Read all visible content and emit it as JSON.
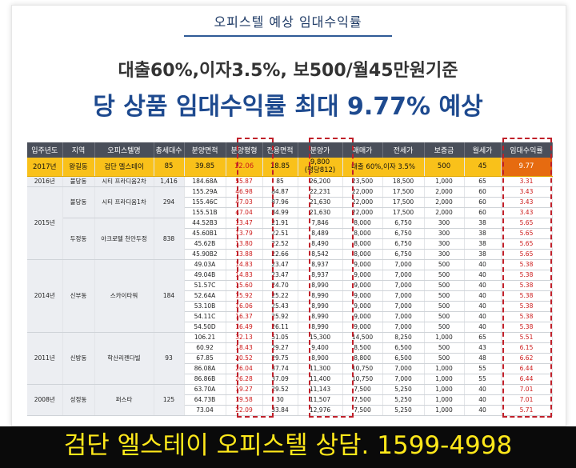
{
  "header": {
    "top_title": "오피스텔 예상 임대수익률",
    "subtitle": "대출60%,이자3.5%, 보500/월45만원기준",
    "headline": "당 상품 임대수익률 최대 9.77% 예상"
  },
  "table": {
    "columns": [
      "입주년도",
      "지역",
      "오피스텔명",
      "총세대수",
      "분양면적",
      "분양평형",
      "전용면적",
      "분양가",
      "매매가",
      "전세가",
      "보증금",
      "월세가",
      "임대수익률"
    ],
    "highlight": {
      "year": "2017년",
      "region": "왕길동",
      "name": "검단 엘스테이",
      "units": "85",
      "area": "39.85",
      "pyeong": "12.06",
      "exclusive": "18.85",
      "price": "9,800",
      "price_note": "(평당812)",
      "loan_note": "대출 60%,이자 3.5%",
      "deposit": "500",
      "rent": "45",
      "rate": "9.77"
    },
    "groups": [
      {
        "year": "2016년",
        "subgroups": [
          {
            "region": "불당동",
            "name": "시티 프라디움2차",
            "units": "1,416",
            "rows": [
              [
                "184.68A",
                "55.87",
                "85",
                "26,200",
                "23,500",
                "18,500",
                "1,000",
                "65",
                "3.31"
              ]
            ]
          }
        ]
      },
      {
        "year": "2015년",
        "subgroups": [
          {
            "region": "불당동",
            "name": "시티 프라디움1차",
            "units": "294",
            "rows": [
              [
                "155.29A",
                "46.98",
                "84.87",
                "22,231",
                "22,000",
                "17,500",
                "2,000",
                "60",
                "3.43"
              ],
              [
                "155.46C",
                "47.03",
                "87.96",
                "21,630",
                "22,000",
                "17,500",
                "2,000",
                "60",
                "3.43"
              ],
              [
                "155.51B",
                "47.04",
                "84.99",
                "21,630",
                "22,000",
                "17,500",
                "2,000",
                "60",
                "3.43"
              ]
            ]
          },
          {
            "region": "두정동",
            "name": "아크로텔 천안두정",
            "units": "838",
            "rows": [
              [
                "44.52B3",
                "13.47",
                "21.91",
                "7,846",
                "8,000",
                "6,750",
                "300",
                "38",
                "5.65"
              ],
              [
                "45.60B1",
                "13.79",
                "22.51",
                "8,489",
                "8,000",
                "6,750",
                "300",
                "38",
                "5.65"
              ],
              [
                "45.62B",
                "13.80",
                "22.52",
                "8,490",
                "8,000",
                "6,750",
                "300",
                "38",
                "5.65"
              ],
              [
                "45.90B2",
                "13.88",
                "22.66",
                "8,542",
                "8,000",
                "6,750",
                "300",
                "38",
                "5.65"
              ]
            ]
          }
        ]
      },
      {
        "year": "2014년",
        "subgroups": [
          {
            "region": "신부동",
            "name": "스카이타워",
            "units": "184",
            "rows": [
              [
                "49.03A",
                "14.83",
                "23.47",
                "8,937",
                "9,000",
                "7,000",
                "500",
                "40",
                "5.38"
              ],
              [
                "49.04B",
                "14.83",
                "23.47",
                "8,937",
                "9,000",
                "7,000",
                "500",
                "40",
                "5.38"
              ],
              [
                "51.57C",
                "15.60",
                "24.70",
                "8,990",
                "9,000",
                "7,000",
                "500",
                "40",
                "5.38"
              ],
              [
                "52.64A",
                "15.92",
                "25.22",
                "8,990",
                "9,000",
                "7,000",
                "500",
                "40",
                "5.38"
              ],
              [
                "53.10B",
                "16.06",
                "25.43",
                "8,990",
                "9,000",
                "7,000",
                "500",
                "40",
                "5.38"
              ],
              [
                "54.11C",
                "16.37",
                "25.92",
                "8,990",
                "9,000",
                "7,000",
                "500",
                "40",
                "5.38"
              ],
              [
                "54.50D",
                "16.49",
                "26.11",
                "8,990",
                "9,000",
                "7,000",
                "500",
                "40",
                "5.38"
              ]
            ]
          }
        ]
      },
      {
        "year": "2011년",
        "subgroups": [
          {
            "region": "신방동",
            "name": "학산리젠다빌",
            "units": "93",
            "rows": [
              [
                "106.21",
                "32.13",
                "51.05",
                "15,300",
                "14,500",
                "8,250",
                "1,000",
                "65",
                "5.51"
              ],
              [
                "60.92",
                "18.43",
                "29.27",
                "9,400",
                "8,500",
                "6,500",
                "500",
                "43",
                "6.15"
              ],
              [
                "67.85",
                "20.52",
                "29.75",
                "8,900",
                "8,800",
                "6,500",
                "500",
                "48",
                "6.62"
              ],
              [
                "86.08A",
                "26.04",
                "37.74",
                "11,300",
                "10,750",
                "7,000",
                "1,000",
                "55",
                "6.44"
              ],
              [
                "86.86B",
                "26.28",
                "37.09",
                "11,400",
                "10,750",
                "7,000",
                "1,000",
                "55",
                "6.44"
              ]
            ]
          }
        ]
      },
      {
        "year": "2008년",
        "subgroups": [
          {
            "region": "성정동",
            "name": "퍼스타",
            "units": "125",
            "rows": [
              [
                "63.70A",
                "19.27",
                "29.52",
                "11,143",
                "7,500",
                "5,250",
                "1,000",
                "40",
                "7.01"
              ],
              [
                "64.73B",
                "19.58",
                "30",
                "11,507",
                "7,500",
                "5,250",
                "1,000",
                "40",
                "7.01"
              ],
              [
                "73.04",
                "22.09",
                "33.84",
                "12,976",
                "7,500",
                "5,250",
                "1,000",
                "40",
                "5.71"
              ]
            ]
          }
        ]
      }
    ]
  },
  "footer": {
    "banner": "검단 엘스테이 오피스텔 상담. 1599-4998"
  },
  "colors": {
    "header_bg": "#4a4f5a",
    "highlight_row": "#f9c11a",
    "rate_highlight": "#e66b10",
    "red_values": "#cc1a1a",
    "headline_blue": "#1e4a8f",
    "banner_bg": "#0a0a0a",
    "banner_text": "#ffe81a"
  }
}
